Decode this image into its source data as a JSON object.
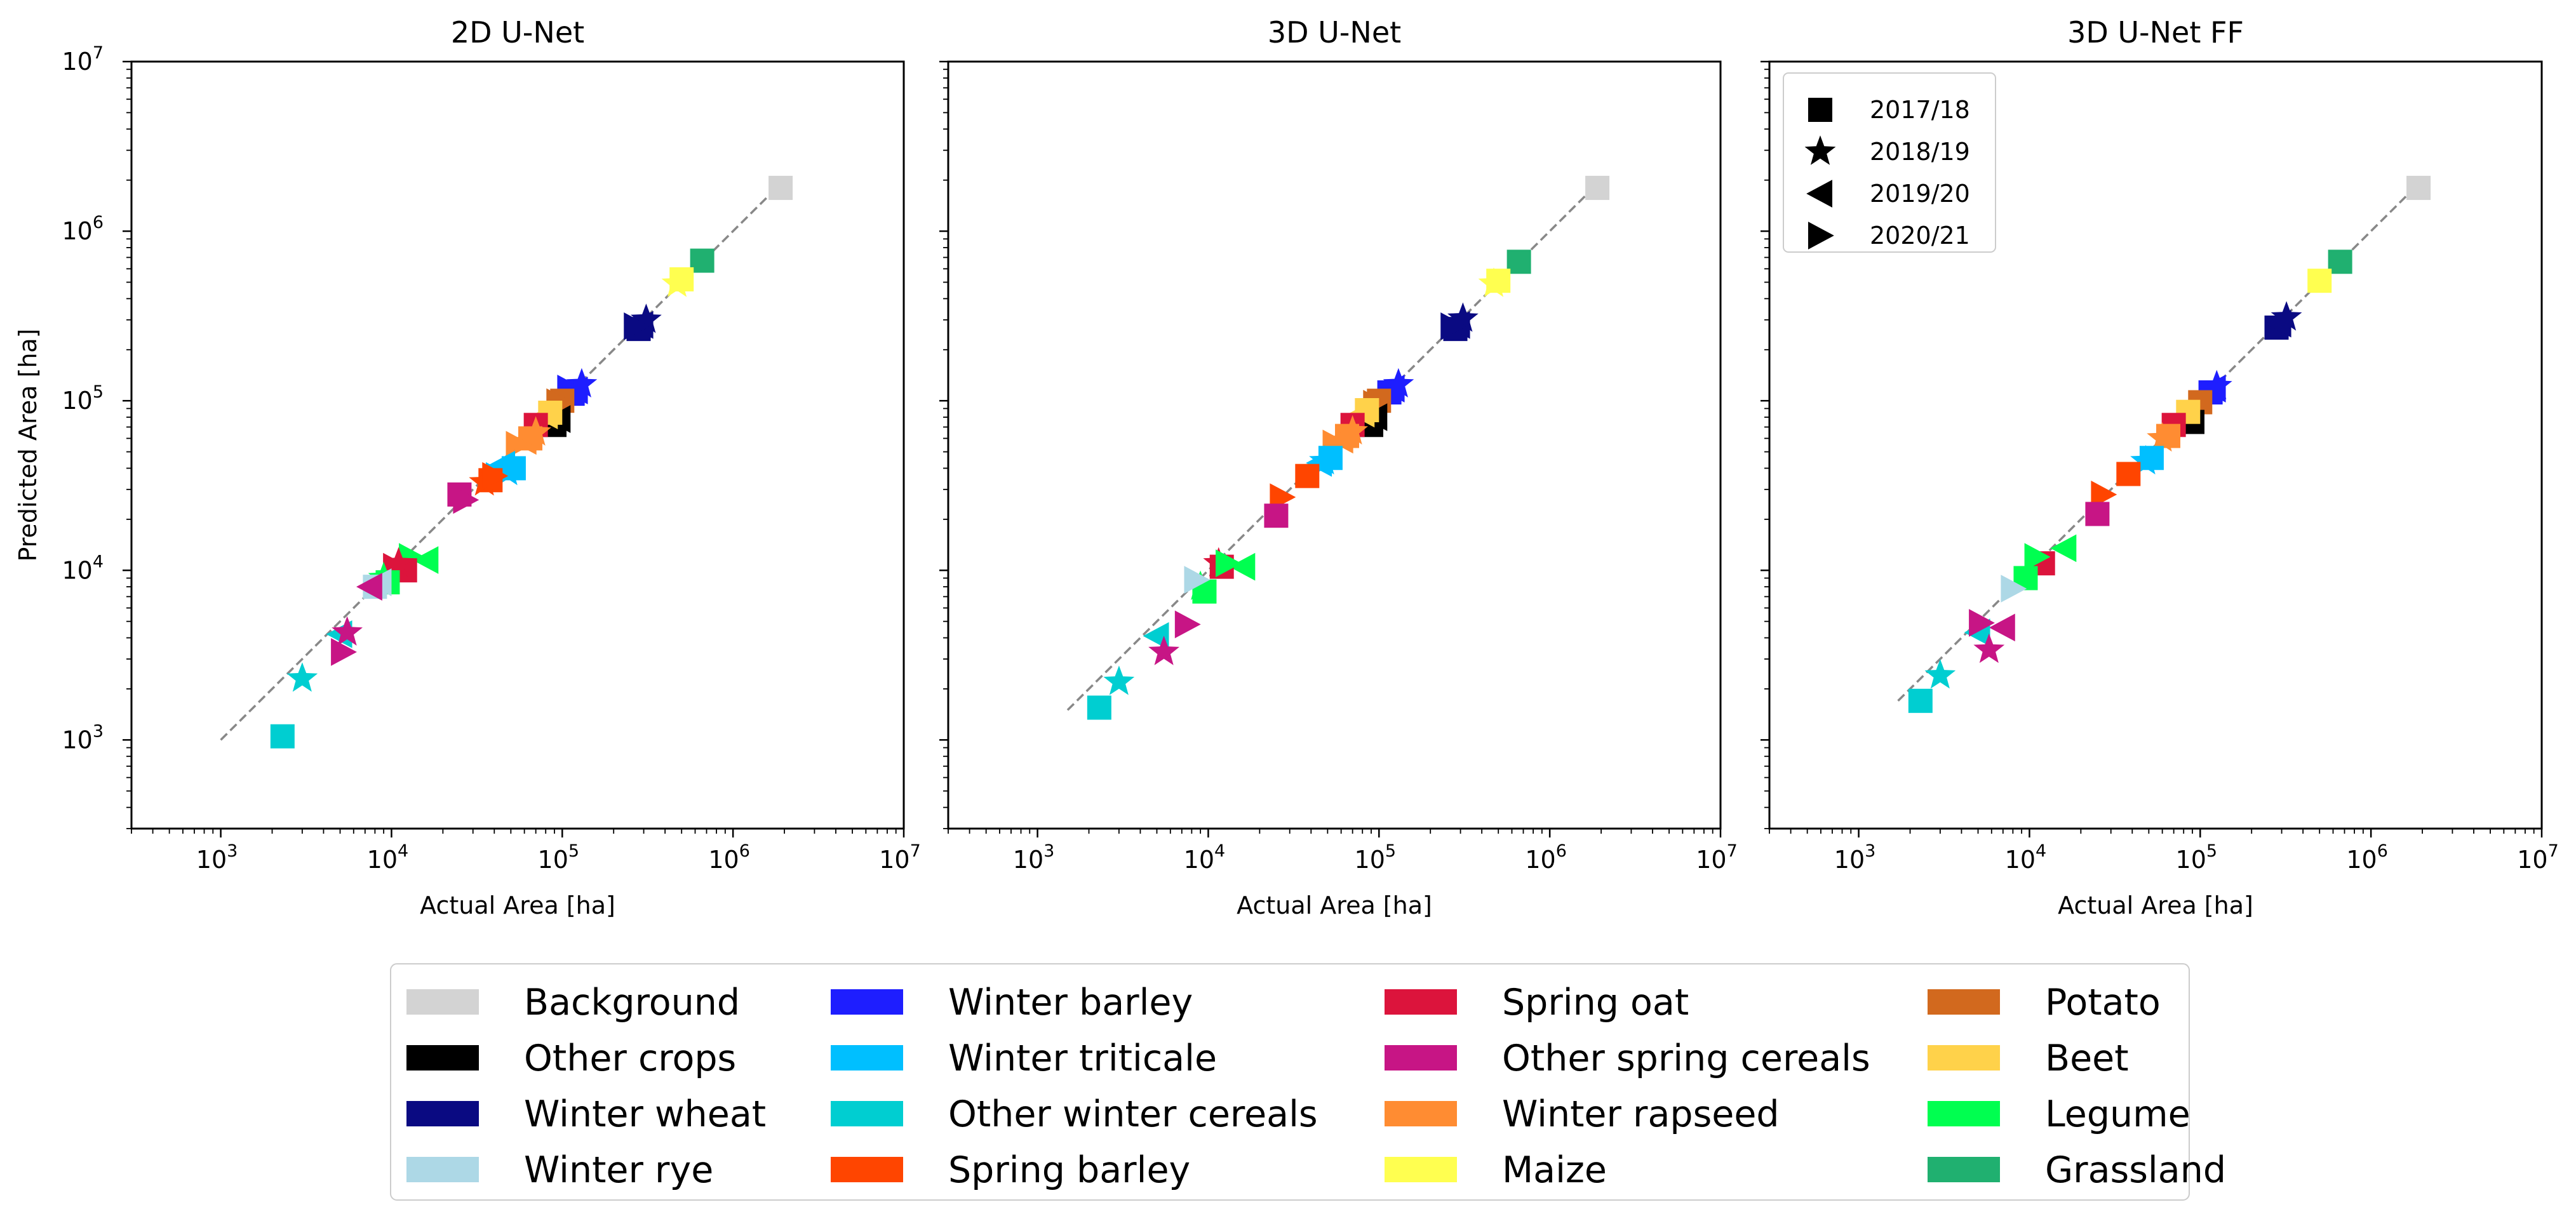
{
  "chart_data": {
    "type": "scatter",
    "xscale": "log",
    "yscale": "log",
    "xlim": [
      300,
      10000000
    ],
    "ylim": [
      300,
      10000000
    ],
    "tick_base": "10",
    "ticks": [
      3,
      4,
      5,
      6,
      7
    ],
    "xlabel": "Actual Area [ha]",
    "ylabel": "Predicted Area [ha]",
    "years": [
      {
        "label": "2017/18",
        "marker": "square"
      },
      {
        "label": "2018/19",
        "marker": "star"
      },
      {
        "label": "2019/20",
        "marker": "triangle-left"
      },
      {
        "label": "2020/21",
        "marker": "triangle-right"
      }
    ],
    "classes": [
      {
        "name": "Background",
        "color": "#d3d3d3",
        "actual": 1900000
      },
      {
        "name": "Other crops",
        "color": "#000000",
        "actual": 90000
      },
      {
        "name": "Winter wheat",
        "color": "#0a0a82",
        "actual": 280000
      },
      {
        "name": "Winter rye",
        "color": "#add8e6",
        "actual": 8000
      },
      {
        "name": "Winter barley",
        "color": "#1e1eff",
        "actual": 120000
      },
      {
        "name": "Winter triticale",
        "color": "#00bfff",
        "actual": 50000
      },
      {
        "name": "Other winter cereals",
        "color": "#00ced1",
        "actual": 2500
      },
      {
        "name": "Spring barley",
        "color": "#ff4500",
        "actual": 35000
      },
      {
        "name": "Spring oat",
        "color": "#dc143c",
        "actual": 11000
      },
      {
        "name": "Other spring cereals",
        "color": "#c71585",
        "actual": 5500
      },
      {
        "name": "Winter rapseed",
        "color": "#ff8c32",
        "actual": 65000
      },
      {
        "name": "Maize",
        "color": "#ffff50",
        "actual": 500000
      },
      {
        "name": "Potato",
        "color": "#d2691e",
        "actual": 100000
      },
      {
        "name": "Beet",
        "color": "#ffd24a",
        "actual": 85000
      },
      {
        "name": "Legume",
        "color": "#00ff50",
        "actual": 10000
      },
      {
        "name": "Grassland",
        "color": "#20b070",
        "actual": 660000
      }
    ],
    "panels": [
      {
        "title": "2D U-Net",
        "diagonal": [
          1000,
          1900000
        ],
        "points": [
          {
            "c": "Background",
            "y": 0,
            "x": 1900000,
            "p": 1800000
          },
          {
            "c": "Grassland",
            "y": 0,
            "x": 660000,
            "p": 670000
          },
          {
            "c": "Maize",
            "y": 0,
            "x": 500000,
            "p": 520000
          },
          {
            "c": "Maize",
            "y": 1,
            "x": 470000,
            "p": 490000
          },
          {
            "c": "Winter wheat",
            "y": 0,
            "x": 280000,
            "p": 265000
          },
          {
            "c": "Winter wheat",
            "y": 1,
            "x": 310000,
            "p": 300000
          },
          {
            "c": "Winter wheat",
            "y": 2,
            "x": 290000,
            "p": 280000
          },
          {
            "c": "Winter wheat",
            "y": 3,
            "x": 270000,
            "p": 275000
          },
          {
            "c": "Winter barley",
            "y": 0,
            "x": 115000,
            "p": 110000
          },
          {
            "c": "Winter barley",
            "y": 1,
            "x": 130000,
            "p": 125000
          },
          {
            "c": "Winter barley",
            "y": 2,
            "x": 120000,
            "p": 115000
          },
          {
            "c": "Winter barley",
            "y": 3,
            "x": 110000,
            "p": 118000
          },
          {
            "c": "Potato",
            "y": 0,
            "x": 100000,
            "p": 100000
          },
          {
            "c": "Potato",
            "y": 3,
            "x": 95000,
            "p": 98000
          },
          {
            "c": "Other crops",
            "y": 0,
            "x": 90000,
            "p": 72000
          },
          {
            "c": "Other crops",
            "y": 1,
            "x": 85000,
            "p": 75000
          },
          {
            "c": "Other crops",
            "y": 2,
            "x": 95000,
            "p": 78000
          },
          {
            "c": "Other crops",
            "y": 3,
            "x": 80000,
            "p": 70000
          },
          {
            "c": "Beet",
            "y": 0,
            "x": 85000,
            "p": 85000
          },
          {
            "c": "Beet",
            "y": 2,
            "x": 80000,
            "p": 82000
          },
          {
            "c": "Spring oat",
            "y": 0,
            "x": 70000,
            "p": 72000
          },
          {
            "c": "Winter rapseed",
            "y": 0,
            "x": 65000,
            "p": 60000
          },
          {
            "c": "Winter rapseed",
            "y": 1,
            "x": 70000,
            "p": 65000
          },
          {
            "c": "Winter rapseed",
            "y": 2,
            "x": 60000,
            "p": 58000
          },
          {
            "c": "Winter rapseed",
            "y": 3,
            "x": 55000,
            "p": 55000
          },
          {
            "c": "Winter triticale",
            "y": 0,
            "x": 52000,
            "p": 40000
          },
          {
            "c": "Winter triticale",
            "y": 1,
            "x": 48000,
            "p": 38000
          },
          {
            "c": "Winter triticale",
            "y": 2,
            "x": 45000,
            "p": 42000
          },
          {
            "c": "Winter triticale",
            "y": 3,
            "x": 42000,
            "p": 36000
          },
          {
            "c": "Spring barley",
            "y": 0,
            "x": 38000,
            "p": 34000
          },
          {
            "c": "Spring barley",
            "y": 1,
            "x": 35000,
            "p": 33000
          },
          {
            "c": "Spring barley",
            "y": 3,
            "x": 40000,
            "p": 36000
          },
          {
            "c": "Other spring cereals",
            "y": 0,
            "x": 25000,
            "p": 28000
          },
          {
            "c": "Other spring cereals",
            "y": 3,
            "x": 27000,
            "p": 26000
          },
          {
            "c": "Legume",
            "y": 2,
            "x": 16000,
            "p": 11500
          },
          {
            "c": "Legume",
            "y": 3,
            "x": 13000,
            "p": 12000
          },
          {
            "c": "Spring oat",
            "y": 0,
            "x": 12000,
            "p": 10000
          },
          {
            "c": "Spring oat",
            "y": 1,
            "x": 11000,
            "p": 11000
          },
          {
            "c": "Spring oat",
            "y": 3,
            "x": 10500,
            "p": 10500
          },
          {
            "c": "Legume",
            "y": 0,
            "x": 9500,
            "p": 8500
          },
          {
            "c": "Legume",
            "y": 1,
            "x": 9000,
            "p": 9000
          },
          {
            "c": "Winter rye",
            "y": 2,
            "x": 8500,
            "p": 8500
          },
          {
            "c": "Winter rye",
            "y": 0,
            "x": 8000,
            "p": 8000
          },
          {
            "c": "Other spring cereals",
            "y": 2,
            "x": 7500,
            "p": 8000
          },
          {
            "c": "Other winter cereals",
            "y": 2,
            "x": 5000,
            "p": 4200
          },
          {
            "c": "Other spring cereals",
            "y": 1,
            "x": 5500,
            "p": 4300
          },
          {
            "c": "Other spring cereals",
            "y": 3,
            "x": 5200,
            "p": 3300
          },
          {
            "c": "Other winter cereals",
            "y": 1,
            "x": 3000,
            "p": 2300
          },
          {
            "c": "Other winter cereals",
            "y": 0,
            "x": 2300,
            "p": 1050
          }
        ]
      },
      {
        "title": "3D U-Net",
        "diagonal": [
          1500,
          1900000
        ],
        "points": [
          {
            "c": "Background",
            "y": 0,
            "x": 1900000,
            "p": 1800000
          },
          {
            "c": "Grassland",
            "y": 0,
            "x": 660000,
            "p": 660000
          },
          {
            "c": "Maize",
            "y": 0,
            "x": 500000,
            "p": 510000
          },
          {
            "c": "Maize",
            "y": 1,
            "x": 470000,
            "p": 490000
          },
          {
            "c": "Winter wheat",
            "y": 0,
            "x": 280000,
            "p": 265000
          },
          {
            "c": "Winter wheat",
            "y": 1,
            "x": 310000,
            "p": 305000
          },
          {
            "c": "Winter wheat",
            "y": 2,
            "x": 290000,
            "p": 280000
          },
          {
            "c": "Winter wheat",
            "y": 3,
            "x": 270000,
            "p": 275000
          },
          {
            "c": "Winter barley",
            "y": 0,
            "x": 115000,
            "p": 112000
          },
          {
            "c": "Winter barley",
            "y": 1,
            "x": 130000,
            "p": 125000
          },
          {
            "c": "Winter barley",
            "y": 2,
            "x": 120000,
            "p": 118000
          },
          {
            "c": "Potato",
            "y": 0,
            "x": 100000,
            "p": 100000
          },
          {
            "c": "Potato",
            "y": 3,
            "x": 95000,
            "p": 96000
          },
          {
            "c": "Other crops",
            "y": 0,
            "x": 90000,
            "p": 72000
          },
          {
            "c": "Other crops",
            "y": 1,
            "x": 85000,
            "p": 76000
          },
          {
            "c": "Other crops",
            "y": 2,
            "x": 95000,
            "p": 80000
          },
          {
            "c": "Beet",
            "y": 0,
            "x": 85000,
            "p": 88000
          },
          {
            "c": "Beet",
            "y": 2,
            "x": 80000,
            "p": 84000
          },
          {
            "c": "Spring oat",
            "y": 0,
            "x": 70000,
            "p": 72000
          },
          {
            "c": "Winter rapseed",
            "y": 0,
            "x": 65000,
            "p": 62000
          },
          {
            "c": "Winter rapseed",
            "y": 1,
            "x": 70000,
            "p": 66000
          },
          {
            "c": "Winter rapseed",
            "y": 2,
            "x": 60000,
            "p": 59000
          },
          {
            "c": "Winter rapseed",
            "y": 3,
            "x": 55000,
            "p": 56000
          },
          {
            "c": "Winter triticale",
            "y": 0,
            "x": 52000,
            "p": 46000
          },
          {
            "c": "Winter triticale",
            "y": 1,
            "x": 48000,
            "p": 44000
          },
          {
            "c": "Winter triticale",
            "y": 2,
            "x": 45000,
            "p": 43000
          },
          {
            "c": "Spring barley",
            "y": 0,
            "x": 38000,
            "p": 36000
          },
          {
            "c": "Spring barley",
            "y": 3,
            "x": 27000,
            "p": 27000
          },
          {
            "c": "Other spring cereals",
            "y": 0,
            "x": 25000,
            "p": 21000
          },
          {
            "c": "Legume",
            "y": 2,
            "x": 16000,
            "p": 10500
          },
          {
            "c": "Spring oat",
            "y": 0,
            "x": 12000,
            "p": 10500
          },
          {
            "c": "Spring oat",
            "y": 1,
            "x": 11500,
            "p": 11000
          },
          {
            "c": "Legume",
            "y": 3,
            "x": 13000,
            "p": 11000
          },
          {
            "c": "Legume",
            "y": 0,
            "x": 9500,
            "p": 7500
          },
          {
            "c": "Legume",
            "y": 1,
            "x": 9000,
            "p": 8000
          },
          {
            "c": "Winter rye",
            "y": 3,
            "x": 8500,
            "p": 8800
          },
          {
            "c": "Other spring cereals",
            "y": 3,
            "x": 7500,
            "p": 4800
          },
          {
            "c": "Other winter cereals",
            "y": 2,
            "x": 5000,
            "p": 4100
          },
          {
            "c": "Other spring cereals",
            "y": 1,
            "x": 5500,
            "p": 3300
          },
          {
            "c": "Other winter cereals",
            "y": 1,
            "x": 3000,
            "p": 2200
          },
          {
            "c": "Other winter cereals",
            "y": 0,
            "x": 2300,
            "p": 1550
          }
        ]
      },
      {
        "title": "3D U-Net FF",
        "diagonal": [
          1700,
          1900000
        ],
        "points": [
          {
            "c": "Background",
            "y": 0,
            "x": 1900000,
            "p": 1800000
          },
          {
            "c": "Grassland",
            "y": 0,
            "x": 660000,
            "p": 660000
          },
          {
            "c": "Maize",
            "y": 0,
            "x": 500000,
            "p": 510000
          },
          {
            "c": "Winter wheat",
            "y": 0,
            "x": 280000,
            "p": 270000
          },
          {
            "c": "Winter wheat",
            "y": 1,
            "x": 320000,
            "p": 310000
          },
          {
            "c": "Winter wheat",
            "y": 2,
            "x": 290000,
            "p": 285000
          },
          {
            "c": "Winter barley",
            "y": 0,
            "x": 115000,
            "p": 112000
          },
          {
            "c": "Winter barley",
            "y": 1,
            "x": 125000,
            "p": 122000
          },
          {
            "c": "Winter barley",
            "y": 2,
            "x": 120000,
            "p": 118000
          },
          {
            "c": "Potato",
            "y": 0,
            "x": 100000,
            "p": 98000
          },
          {
            "c": "Other crops",
            "y": 0,
            "x": 90000,
            "p": 75000
          },
          {
            "c": "Other crops",
            "y": 1,
            "x": 85000,
            "p": 78000
          },
          {
            "c": "Beet",
            "y": 0,
            "x": 85000,
            "p": 86000
          },
          {
            "c": "Spring oat",
            "y": 0,
            "x": 70000,
            "p": 72000
          },
          {
            "c": "Winter rapseed",
            "y": 0,
            "x": 65000,
            "p": 62000
          },
          {
            "c": "Winter rapseed",
            "y": 1,
            "x": 60000,
            "p": 60000
          },
          {
            "c": "Winter triticale",
            "y": 0,
            "x": 52000,
            "p": 46000
          },
          {
            "c": "Winter triticale",
            "y": 1,
            "x": 48000,
            "p": 44000
          },
          {
            "c": "Spring barley",
            "y": 0,
            "x": 38000,
            "p": 37000
          },
          {
            "c": "Spring barley",
            "y": 3,
            "x": 27000,
            "p": 28000
          },
          {
            "c": "Other spring cereals",
            "y": 0,
            "x": 25000,
            "p": 21500
          },
          {
            "c": "Legume",
            "y": 2,
            "x": 16000,
            "p": 13500
          },
          {
            "c": "Spring oat",
            "y": 0,
            "x": 12000,
            "p": 11000
          },
          {
            "c": "Legume",
            "y": 3,
            "x": 11000,
            "p": 12000
          },
          {
            "c": "Legume",
            "y": 0,
            "x": 9500,
            "p": 9000
          },
          {
            "c": "Winter rye",
            "y": 3,
            "x": 8000,
            "p": 7800
          },
          {
            "c": "Other spring cereals",
            "y": 2,
            "x": 7000,
            "p": 4600
          },
          {
            "c": "Other winter cereals",
            "y": 2,
            "x": 5000,
            "p": 4300
          },
          {
            "c": "Other spring cereals",
            "y": 3,
            "x": 5200,
            "p": 4900
          },
          {
            "c": "Other spring cereals",
            "y": 1,
            "x": 5800,
            "p": 3400
          },
          {
            "c": "Other winter cereals",
            "y": 1,
            "x": 3000,
            "p": 2400
          },
          {
            "c": "Other winter cereals",
            "y": 0,
            "x": 2300,
            "p": 1700
          }
        ]
      }
    ]
  }
}
